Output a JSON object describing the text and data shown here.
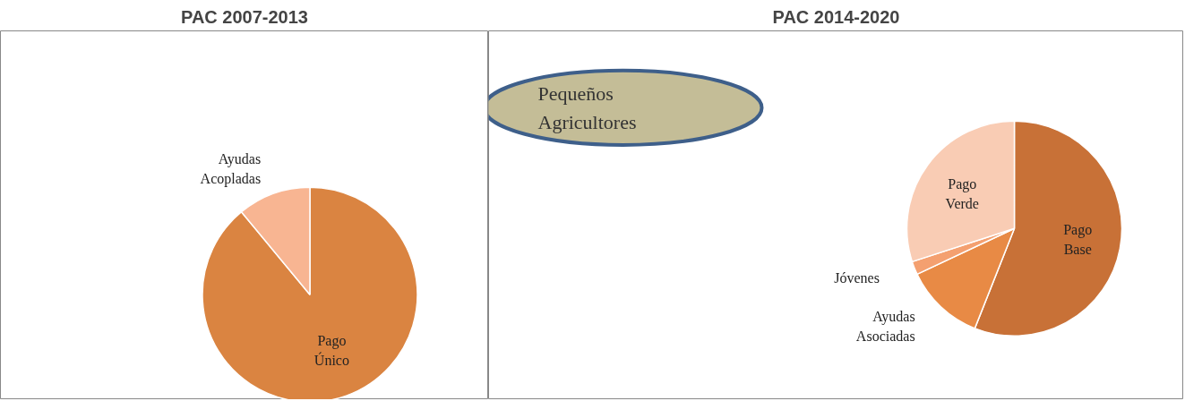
{
  "chart_data": [
    {
      "type": "pie",
      "title": "PAC 2007-2013",
      "categories": [
        "Pago Único",
        "Ayudas Acopladas"
      ],
      "values": [
        89,
        11
      ],
      "colors": [
        "#da8441",
        "#f8b592"
      ]
    },
    {
      "type": "pie",
      "title": "PAC 2014-2020",
      "categories": [
        "Pago Base",
        "Ayudas Asociadas",
        "Jóvenes",
        "Pago Verde"
      ],
      "values": [
        56,
        12,
        2,
        30
      ],
      "colors": [
        "#c87137",
        "#e88a45",
        "#f4a070",
        "#f9ccb4"
      ],
      "annotations": [
        "Pequeños Agricultores"
      ]
    }
  ]
}
